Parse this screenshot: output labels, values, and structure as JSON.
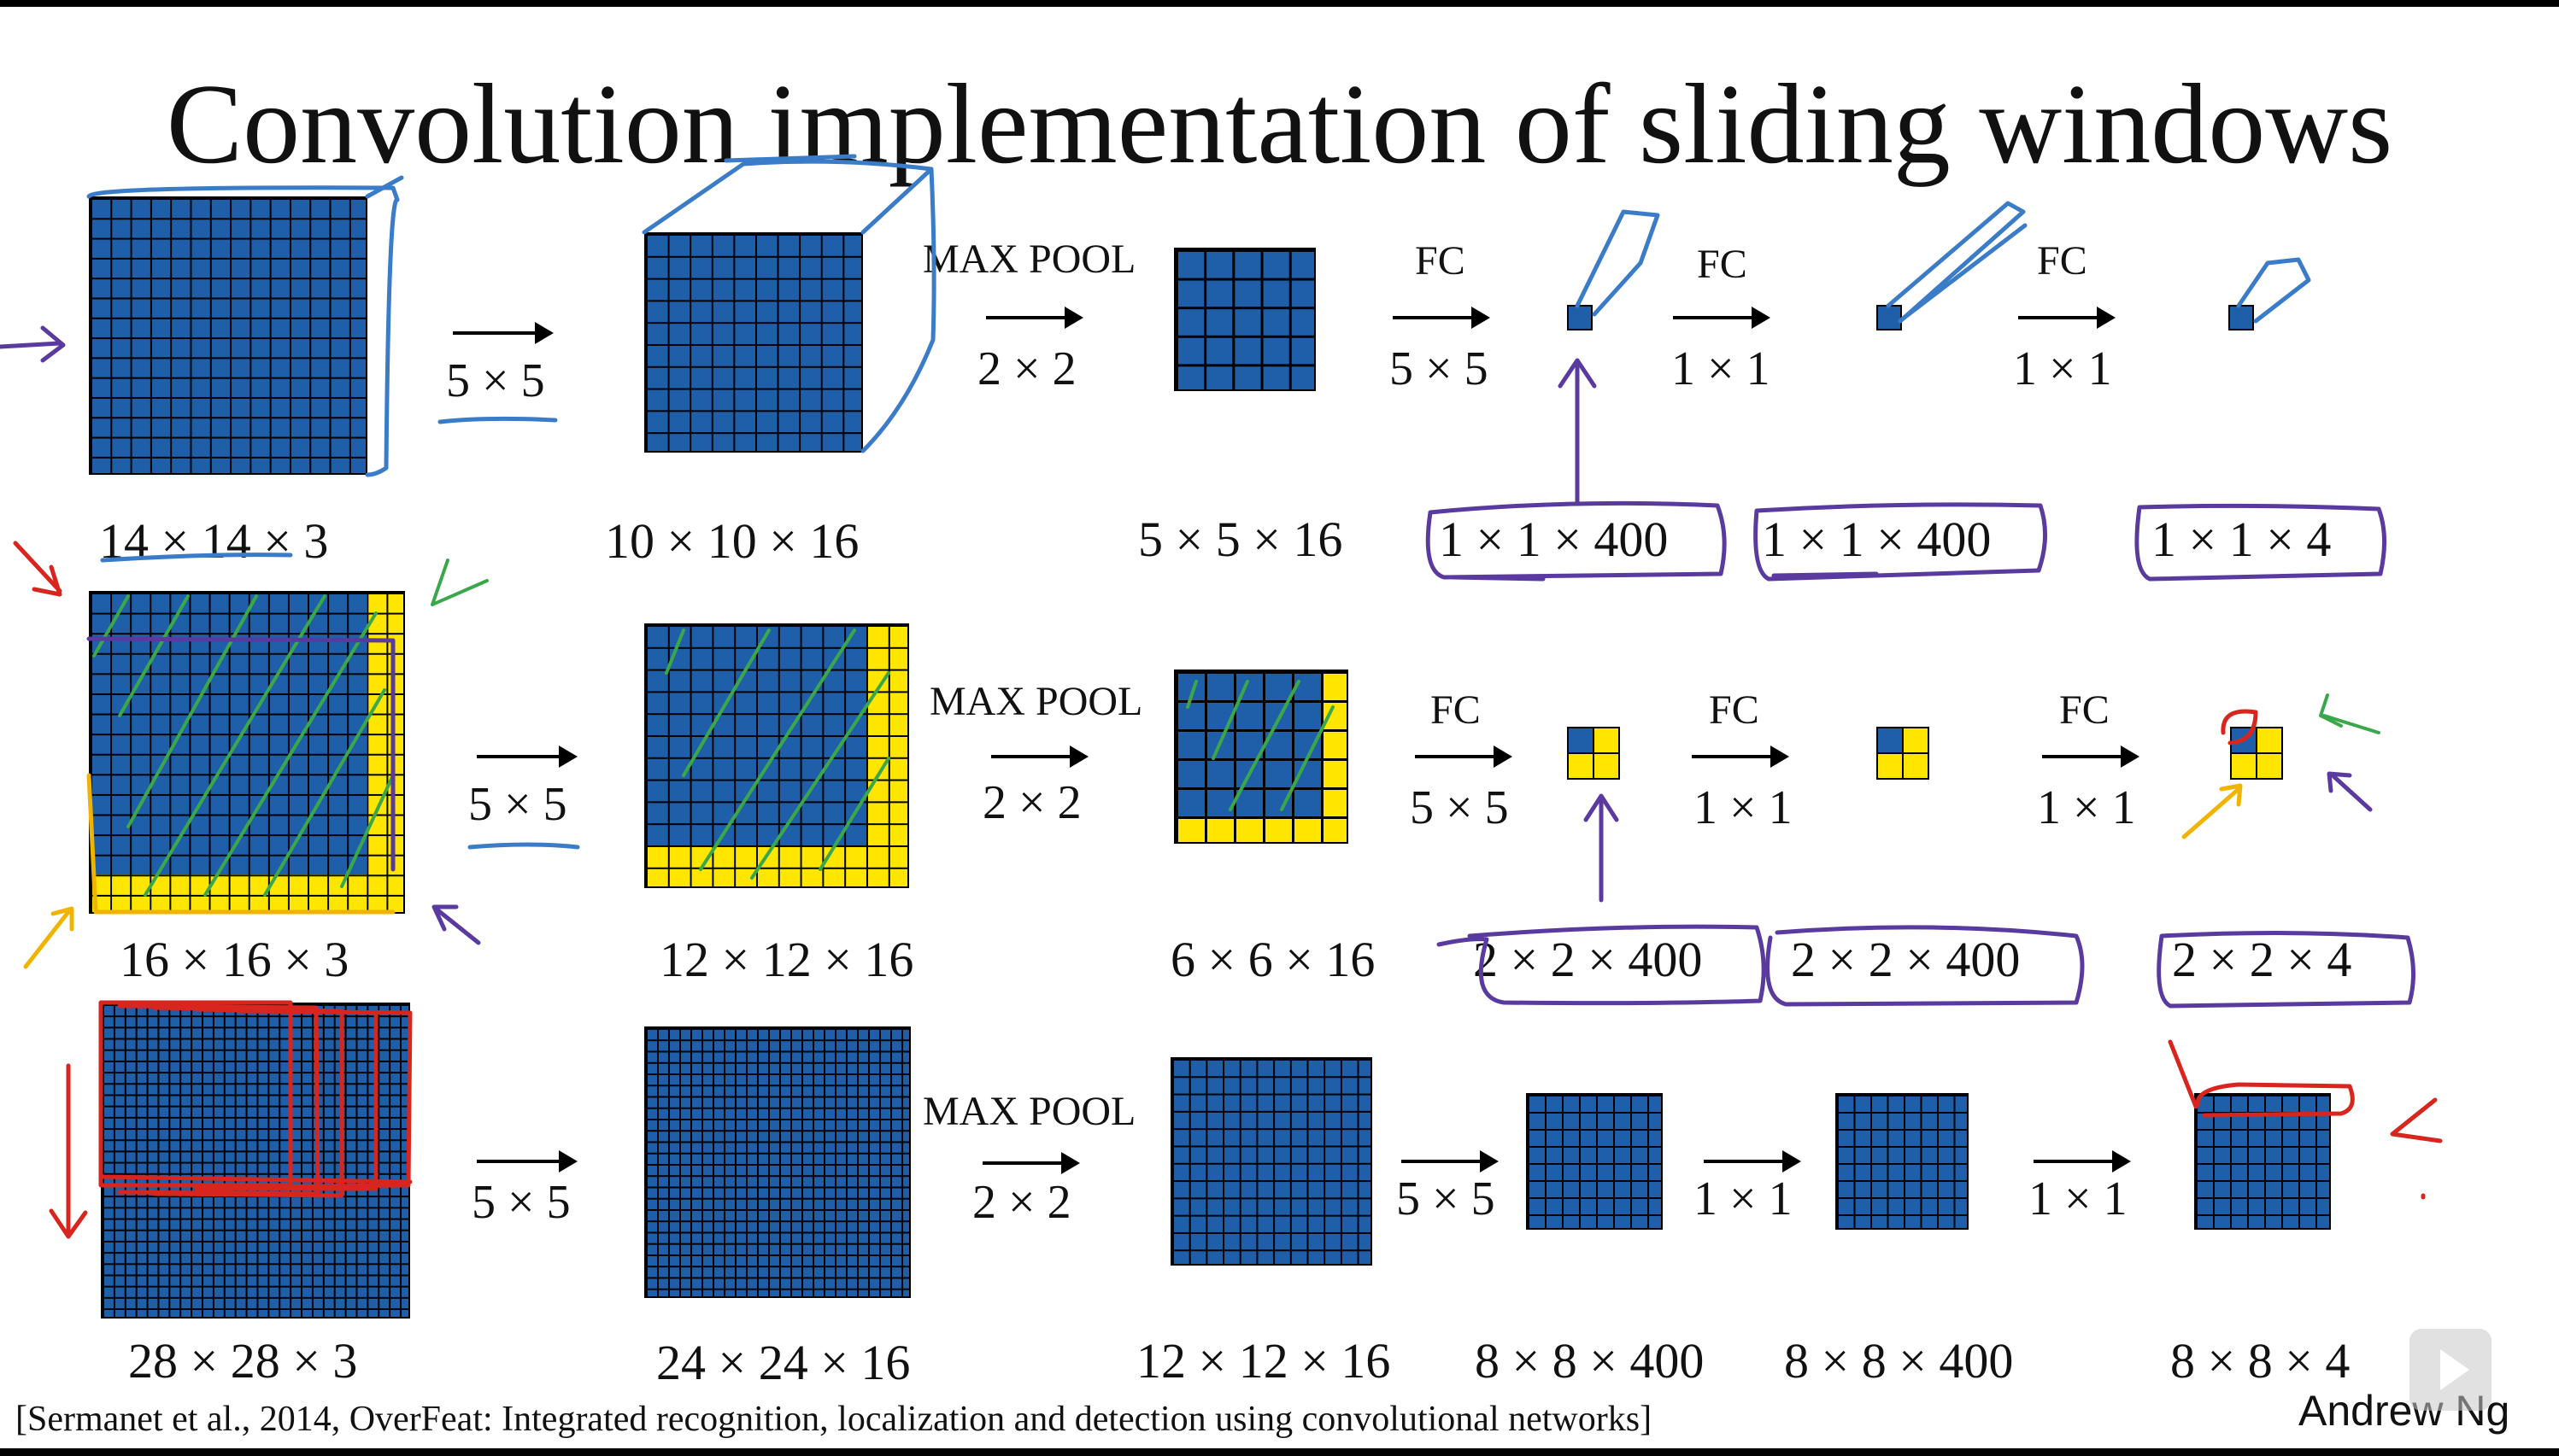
{
  "title": "Convolution implementation of sliding windows",
  "colors": {
    "cell": "#1f5ea8",
    "extra": "#ffe600",
    "ink_blue": "#3a7cc8",
    "ink_purple": "#5b3aa0",
    "ink_green": "#3aa84a",
    "ink_red": "#d8261e",
    "ink_yellow": "#f0b400"
  },
  "rows": [
    {
      "dims": [
        "14 × 14  × 3",
        "10 × 10 × 16",
        "5 × 5 × 16",
        "1 × 1 × 400",
        "1 × 1 × 400",
        "1 × 1 × 4"
      ],
      "ops": [
        {
          "name": "",
          "kernel": "5 × 5"
        },
        {
          "name": "MAX POOL",
          "kernel": "2 × 2"
        },
        {
          "name": "FC",
          "kernel": "5 × 5"
        },
        {
          "name": "FC",
          "kernel": "1 × 1"
        },
        {
          "name": "FC",
          "kernel": "1 × 1"
        }
      ]
    },
    {
      "dims": [
        "16 × 16 × 3",
        "12 × 12 × 16",
        "6 × 6 × 16",
        "2 × 2 × 400",
        "2 × 2 × 400",
        "2 × 2 × 4"
      ],
      "ops": [
        {
          "name": "",
          "kernel": "5 × 5"
        },
        {
          "name": "MAX POOL",
          "kernel": "2 × 2"
        },
        {
          "name": "FC",
          "kernel": "5 × 5"
        },
        {
          "name": "FC",
          "kernel": "1 × 1"
        },
        {
          "name": "FC",
          "kernel": "1 × 1"
        }
      ]
    },
    {
      "dims": [
        "28 × 28 × 3",
        "24 × 24 × 16",
        "12 × 12 × 16",
        "8 × 8 × 400",
        "8 × 8 × 400",
        "8 × 8 × 4"
      ],
      "ops": [
        {
          "name": "",
          "kernel": "5 × 5"
        },
        {
          "name": "MAX POOL",
          "kernel": "2 × 2"
        },
        {
          "name": "",
          "kernel": "5 × 5"
        },
        {
          "name": "",
          "kernel": "1 × 1"
        },
        {
          "name": "",
          "kernel": "1 × 1"
        }
      ]
    }
  ],
  "citation": "[Sermanet et al., 2014, OverFeat: Integrated recognition, localization and detection using convolutional networks]",
  "author": "Andrew Ng"
}
